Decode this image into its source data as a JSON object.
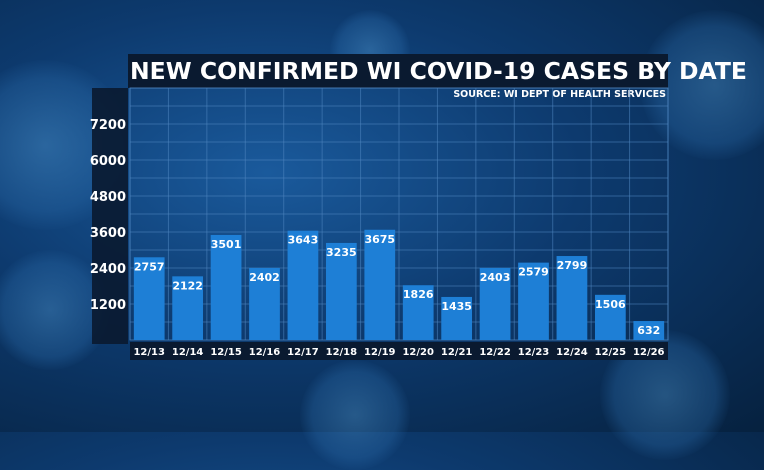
{
  "chart_data": {
    "type": "bar",
    "title": "NEW CONFIRMED WI COVID-19 CASES BY DATE",
    "subtitle": "SOURCE: WI DEPT OF HEALTH SERVICES",
    "categories": [
      "12/13",
      "12/14",
      "12/15",
      "12/16",
      "12/17",
      "12/18",
      "12/19",
      "12/20",
      "12/21",
      "12/22",
      "12/23",
      "12/24",
      "12/25",
      "12/26"
    ],
    "values": [
      2757,
      2122,
      3501,
      2402,
      3643,
      3235,
      3675,
      1826,
      1435,
      2403,
      2579,
      2799,
      1506,
      632
    ],
    "yticks": [
      1200,
      2400,
      3600,
      4800,
      6000,
      7200
    ],
    "ylim": [
      0,
      8400
    ],
    "xlabel": "",
    "ylabel": "",
    "grid": true,
    "colors": {
      "bar": "#1e7fd6",
      "label": "#ffffff",
      "grid": "#4f86c0",
      "band": "#0a1a30"
    }
  }
}
